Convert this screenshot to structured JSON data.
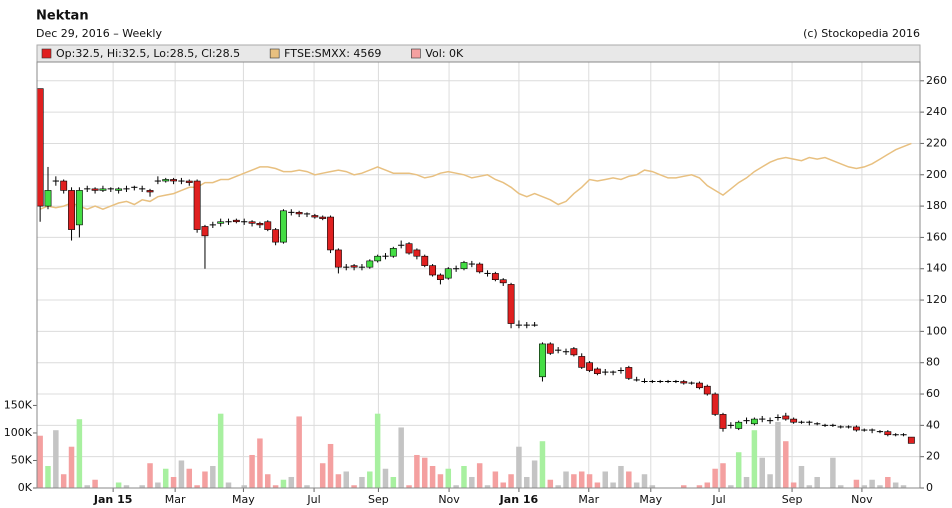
{
  "chart_data": {
    "type": "candlestick",
    "title": "Nektan",
    "subtitle": "Dec 29, 2016 – Weekly",
    "source": "(c) Stockopedia 2016",
    "x": [
      0,
      1,
      2,
      3,
      4,
      5,
      6,
      7,
      8,
      9,
      10,
      11,
      12,
      13,
      14,
      15,
      16,
      17,
      18,
      19,
      20,
      21,
      22,
      23,
      24,
      25,
      26,
      27,
      28,
      29,
      30,
      31,
      32,
      33,
      34,
      35,
      36,
      37,
      38,
      39,
      40,
      41,
      42,
      43,
      44,
      45,
      46,
      47,
      48,
      49,
      50,
      51,
      52,
      53,
      54,
      55,
      56,
      57,
      58,
      59,
      60,
      61,
      62,
      63,
      64,
      65,
      66,
      67,
      68,
      69,
      70,
      71,
      72,
      73,
      74,
      75,
      76,
      77,
      78,
      79,
      80,
      81,
      82,
      83,
      84,
      85,
      86,
      87,
      88,
      89,
      90,
      91,
      92,
      93,
      94,
      95,
      96,
      97,
      98,
      99,
      100,
      101,
      102,
      103,
      104,
      105,
      106,
      107,
      108,
      109,
      110,
      111
    ],
    "xlim": [
      -0.4,
      112.1
    ],
    "xticks": [
      {
        "value": 9.3,
        "label": "Jan 15"
      },
      {
        "value": 17.2,
        "label": "Mar"
      },
      {
        "value": 25.9,
        "label": "May"
      },
      {
        "value": 34.9,
        "label": "Jul"
      },
      {
        "value": 43.1,
        "label": "Sep"
      },
      {
        "value": 52.1,
        "label": "Nov"
      },
      {
        "value": 61,
        "label": "Jan 16"
      },
      {
        "value": 69.9,
        "label": "Mar"
      },
      {
        "value": 77.8,
        "label": "May"
      },
      {
        "value": 86.5,
        "label": "Jul"
      },
      {
        "value": 95.8,
        "label": "Sep"
      },
      {
        "value": 104.7,
        "label": "Nov"
      }
    ],
    "ylim": [
      0,
      272
    ],
    "yticks": [
      0,
      20,
      40,
      60,
      80,
      100,
      120,
      140,
      160,
      180,
      200,
      220,
      240,
      260
    ],
    "y2lim": [
      0,
      774000
    ],
    "y2ticks": [
      {
        "value": 0,
        "label": "0K"
      },
      {
        "value": 50000,
        "label": "50K"
      },
      {
        "value": 100000,
        "label": "100K"
      },
      {
        "value": 150000,
        "label": "150K"
      }
    ],
    "grid": true,
    "series": [
      {
        "name": "Op:32.5, Hi:32.5, Lo:28.5, Cl:28.5",
        "type": "candlestick",
        "color": "#e02020",
        "up_color": "#44dd44",
        "down_color": "#e02020",
        "open": [
          255,
          180,
          196,
          196,
          190,
          168,
          191,
          191,
          190,
          191,
          190,
          191,
          192,
          191,
          190,
          196,
          196,
          197,
          196,
          196,
          196,
          167,
          168,
          169,
          170,
          171,
          170,
          170,
          169,
          170,
          165,
          157,
          176,
          176,
          175,
          174,
          173,
          173,
          152,
          141,
          142,
          141,
          141,
          145,
          148,
          148,
          155,
          156,
          152,
          148,
          142,
          136,
          134,
          140,
          140,
          143,
          143,
          137,
          137,
          133,
          130,
          104,
          104,
          104,
          71,
          92,
          88,
          87,
          89,
          84,
          80,
          76,
          74,
          74,
          75,
          77,
          69,
          68,
          68,
          68,
          68,
          68,
          68,
          67,
          67,
          65,
          60,
          47,
          40,
          38,
          43,
          41,
          44,
          43,
          45,
          46,
          44,
          42,
          42,
          41,
          40,
          40,
          39,
          39,
          39,
          37,
          37,
          36,
          36,
          34,
          34,
          32.5
        ],
        "high": [
          255,
          205,
          199,
          197,
          192,
          192,
          193,
          192,
          193,
          192,
          192,
          193,
          193,
          193,
          191,
          199,
          198,
          198,
          198,
          197,
          197,
          168,
          170,
          172,
          172,
          172,
          172,
          171,
          170,
          171,
          166,
          178,
          178,
          177,
          176,
          175,
          174,
          174,
          153,
          143,
          143,
          143,
          146,
          149,
          150,
          154,
          158,
          157,
          153,
          149,
          143,
          137,
          141,
          142,
          145,
          145,
          144,
          139,
          138,
          134,
          131,
          107,
          106,
          106,
          93,
          93,
          90,
          89,
          90,
          86,
          81,
          77,
          76,
          75,
          77,
          78,
          71,
          70,
          69,
          69,
          69,
          69,
          69,
          68,
          68,
          66,
          61,
          48,
          42,
          43,
          45,
          45,
          46,
          45,
          47,
          48,
          45,
          43,
          43,
          42,
          41,
          41,
          40,
          40,
          40,
          38,
          38,
          37,
          37,
          35,
          35,
          32.5
        ],
        "low": [
          170,
          178,
          193,
          188,
          158,
          160,
          189,
          188,
          189,
          189,
          188,
          189,
          190,
          189,
          186,
          194,
          195,
          194,
          194,
          193,
          163,
          140,
          166,
          167,
          168,
          169,
          168,
          167,
          166,
          164,
          155,
          156,
          174,
          173,
          173,
          172,
          171,
          150,
          137,
          139,
          139,
          139,
          140,
          144,
          146,
          147,
          153,
          149,
          146,
          141,
          135,
          130,
          133,
          138,
          139,
          141,
          137,
          135,
          132,
          129,
          102,
          102,
          102,
          103,
          68,
          85,
          86,
          85,
          84,
          76,
          74,
          72,
          72,
          72,
          73,
          69,
          68,
          67,
          67,
          67,
          67,
          67,
          66,
          66,
          63,
          59,
          46,
          36,
          38,
          37,
          41,
          40,
          42,
          41,
          43,
          43,
          41,
          41,
          40,
          40,
          39,
          39,
          38,
          38,
          36,
          36,
          35,
          35,
          33,
          33,
          33,
          28.5
        ],
        "close": [
          180,
          190,
          196,
          190,
          165,
          190,
          191,
          190,
          191,
          191,
          191,
          191,
          192,
          191,
          189,
          196,
          197,
          196,
          196,
          195,
          165,
          161,
          168,
          170,
          170,
          170,
          170,
          169,
          168,
          165,
          157,
          177,
          176,
          175,
          175,
          173,
          172,
          152,
          141,
          141,
          141,
          141,
          145,
          148,
          148,
          153,
          155,
          150,
          148,
          142,
          136,
          133,
          140,
          140,
          144,
          143,
          138,
          137,
          133,
          131,
          105,
          104,
          104,
          104,
          92,
          86,
          88,
          87,
          85,
          77,
          75,
          73,
          74,
          74,
          75,
          70,
          69,
          68,
          68,
          68,
          68,
          68,
          67,
          67,
          64,
          60,
          47,
          38,
          40,
          42,
          43,
          44,
          44,
          43,
          45,
          44,
          42,
          42,
          42,
          41,
          40,
          40,
          39,
          39,
          37,
          37,
          37,
          36,
          34,
          34,
          34,
          28.5
        ]
      },
      {
        "name": "FTSE:SMXX: 4569",
        "type": "line",
        "color": "#e8c080",
        "values": [
          178,
          180,
          179,
          180,
          182,
          180,
          178,
          180,
          178,
          180,
          182,
          183,
          181,
          184,
          183,
          186,
          187,
          188,
          190,
          192,
          192,
          195,
          195,
          197,
          197,
          199,
          201,
          203,
          205,
          205,
          204,
          202,
          202,
          203,
          202,
          200,
          201,
          202,
          203,
          202,
          200,
          201,
          203,
          205,
          203,
          201,
          201,
          201,
          200,
          198,
          199,
          201,
          202,
          201,
          200,
          198,
          199,
          200,
          197,
          195,
          192,
          188,
          186,
          188,
          186,
          184,
          181,
          183,
          188,
          192,
          197,
          196,
          197,
          198,
          197,
          199,
          200,
          203,
          202,
          200,
          198,
          198,
          199,
          200,
          198,
          193,
          190,
          187,
          191,
          195,
          198,
          202,
          205,
          208,
          210,
          211,
          210,
          209,
          211,
          210,
          211,
          209,
          207,
          205,
          204,
          205,
          207,
          210,
          213,
          216,
          218,
          220
        ]
      },
      {
        "name": "Vol: 0K",
        "type": "bar",
        "axis": "y2",
        "color": "#f4a0a0",
        "up_color": "#a8f0a0",
        "down_color": "#f4a0a0",
        "flat_color": "#c4c4c4",
        "values": [
          95000,
          40000,
          105000,
          25000,
          75000,
          125000,
          5000,
          15000,
          0,
          0,
          10000,
          5000,
          0,
          5000,
          45000,
          10000,
          35000,
          20000,
          50000,
          35000,
          5000,
          30000,
          40000,
          135000,
          10000,
          0,
          5000,
          60000,
          90000,
          25000,
          5000,
          15000,
          20000,
          130000,
          5000,
          0,
          45000,
          80000,
          25000,
          30000,
          5000,
          20000,
          30000,
          135000,
          35000,
          20000,
          110000,
          5000,
          60000,
          55000,
          40000,
          25000,
          35000,
          5000,
          40000,
          20000,
          45000,
          5000,
          30000,
          10000,
          25000,
          75000,
          20000,
          50000,
          85000,
          15000,
          5000,
          30000,
          25000,
          30000,
          25000,
          10000,
          30000,
          10000,
          40000,
          30000,
          10000,
          25000,
          5000,
          0,
          0,
          0,
          5000,
          0,
          5000,
          10000,
          35000,
          45000,
          5000,
          65000,
          20000,
          105000,
          55000,
          25000,
          120000,
          85000,
          10000,
          40000,
          5000,
          20000,
          0,
          55000,
          5000,
          0,
          15000,
          5000,
          15000,
          5000,
          20000,
          10000,
          5000,
          0
        ]
      }
    ]
  }
}
